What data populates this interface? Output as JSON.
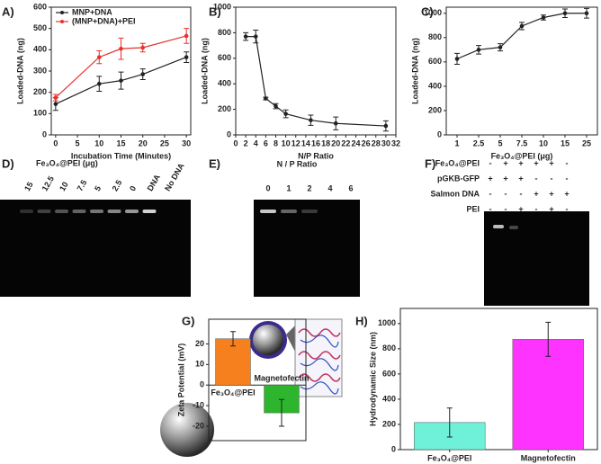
{
  "chart_data": [
    {
      "type": "line",
      "panel": "A)",
      "xlabel": "Incubation Time (Minutes)",
      "ylabel": "Loaded-DNA (ng)",
      "x": [
        0,
        10,
        15,
        20,
        30
      ],
      "xlim": [
        -1,
        31
      ],
      "xticks": [
        0,
        5,
        10,
        15,
        20,
        25,
        30
      ],
      "ylim": [
        0,
        600
      ],
      "yticks": [
        0,
        100,
        200,
        300,
        400,
        500,
        600
      ],
      "legend": "upper left",
      "series": [
        {
          "name": "MNP+DNA",
          "color": "#222222",
          "values": [
            145,
            240,
            255,
            285,
            365
          ],
          "errors": [
            30,
            35,
            40,
            25,
            25
          ]
        },
        {
          "name": "(MNP+DNA)+PEI",
          "color": "#e8312e",
          "values": [
            175,
            365,
            405,
            410,
            465
          ],
          "errors": [
            15,
            30,
            50,
            20,
            35
          ]
        }
      ]
    },
    {
      "type": "line",
      "panel": "B)",
      "xlabel": "N/P Ratio",
      "ylabel": "Loaded-DNA (ng)",
      "x": [
        2,
        4,
        6,
        8,
        10,
        15,
        20,
        30
      ],
      "xlim": [
        0,
        32
      ],
      "xticks": [
        0,
        2,
        4,
        6,
        8,
        10,
        12,
        14,
        16,
        18,
        20,
        22,
        24,
        26,
        28,
        30,
        32
      ],
      "ylim": [
        0,
        1000
      ],
      "yticks": [
        0,
        200,
        400,
        600,
        800,
        1000
      ],
      "series": [
        {
          "color": "#222222",
          "values": [
            770,
            770,
            285,
            225,
            165,
            115,
            90,
            70
          ],
          "errors": [
            30,
            50,
            10,
            20,
            30,
            40,
            50,
            40
          ]
        }
      ]
    },
    {
      "type": "line",
      "panel": "C)",
      "xlabel": "Fe₃O₄@PEI (μg)",
      "ylabel": "Loaded-DNA (ng)",
      "categories": [
        "1",
        "2.5",
        "5",
        "7.5",
        "10",
        "15",
        "25"
      ],
      "ylim": [
        0,
        1050
      ],
      "yticks": [
        0,
        200,
        400,
        600,
        800,
        1000
      ],
      "series": [
        {
          "color": "#222222",
          "values": [
            625,
            700,
            720,
            895,
            965,
            1000,
            1000
          ],
          "errors": [
            45,
            35,
            30,
            30,
            20,
            35,
            40
          ]
        }
      ]
    },
    {
      "type": "bar",
      "panel": "G)",
      "ylabel": "Zeta Potential (mV)",
      "categories": [
        "Fe₃O₄@PEI",
        "Magnetofectin"
      ],
      "colors": [
        "#f7801e",
        "#2db52d"
      ],
      "values": [
        22.5,
        -13.5
      ],
      "errors": [
        3.5,
        6.5
      ],
      "ylim": [
        -27,
        32
      ],
      "yticks": [
        -20,
        -10,
        0,
        10,
        20
      ]
    },
    {
      "type": "bar",
      "panel": "H)",
      "ylabel": "Hydrodynamic Size (nm)",
      "categories": [
        "Fe₃O₄@PEI",
        "Magnetofectin"
      ],
      "colors": [
        "#6ff0d8",
        "#ff33ff"
      ],
      "values": [
        215,
        875
      ],
      "errors": [
        115,
        135
      ],
      "ylim": [
        0,
        1120
      ],
      "yticks": [
        0,
        200,
        400,
        600,
        800,
        1000
      ]
    }
  ],
  "gels": {
    "d": {
      "panel": "D)",
      "title": "Fe₃O₄@PEI (μg)",
      "lanes": [
        "15",
        "12.5",
        "10",
        "7.5",
        "5",
        "2.5",
        "0",
        "DNA",
        "No DNA"
      ]
    },
    "e": {
      "panel": "E)",
      "title": "N / P  Ratio",
      "lanes": [
        "0",
        "1",
        "2",
        "4",
        "6"
      ]
    },
    "f": {
      "panel": "F)",
      "rows": [
        {
          "label": "Fe₃O₄@PEI",
          "signs": [
            "-",
            "+",
            "+",
            "+",
            "+",
            "-"
          ]
        },
        {
          "label": "pGKB-GFP",
          "signs": [
            "+",
            "+",
            "+",
            "-",
            "-",
            "-"
          ]
        },
        {
          "label": "Salmon DNA",
          "signs": [
            "-",
            "-",
            "-",
            "+",
            "+",
            "+"
          ]
        },
        {
          "label": "PEI",
          "signs": [
            "-",
            "-",
            "+",
            "-",
            "+",
            "-"
          ]
        }
      ]
    }
  }
}
